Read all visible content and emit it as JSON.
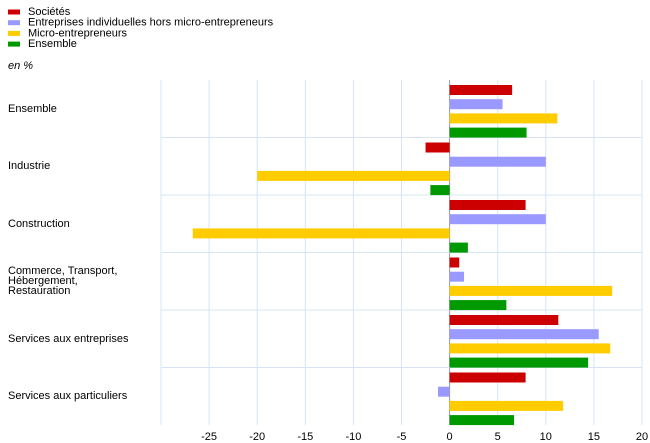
{
  "chart_data": {
    "type": "bar",
    "orientation": "horizontal",
    "unit_label": "en %",
    "categories": [
      "Ensemble",
      "Industrie",
      "Construction",
      "Commerce, Transport,\nHébergement,\nRestauration",
      "Services aux entreprises",
      "Services aux particuliers"
    ],
    "series": [
      {
        "name": "Sociétés",
        "color": "#cc0000",
        "values": [
          6.5,
          -2.5,
          7.9,
          1.0,
          11.3,
          7.9
        ]
      },
      {
        "name": "Entreprises individuelles hors micro-entrepreneurs",
        "color": "#9999ff",
        "values": [
          5.5,
          10.0,
          10.0,
          1.5,
          15.5,
          -1.2
        ]
      },
      {
        "name": "Micro-entrepreneurs",
        "color": "#ffcc00",
        "values": [
          11.2,
          -20.0,
          -26.7,
          16.9,
          16.7,
          11.8
        ]
      },
      {
        "name": "Ensemble",
        "color": "#009900",
        "values": [
          8.0,
          -2.0,
          1.9,
          5.9,
          14.4,
          6.7
        ]
      }
    ],
    "xlim": [
      -30,
      20
    ],
    "xticks": [
      -25,
      -20,
      -15,
      -10,
      -5,
      0,
      5,
      10,
      15,
      20
    ],
    "grid": true,
    "legend": "top-left"
  }
}
